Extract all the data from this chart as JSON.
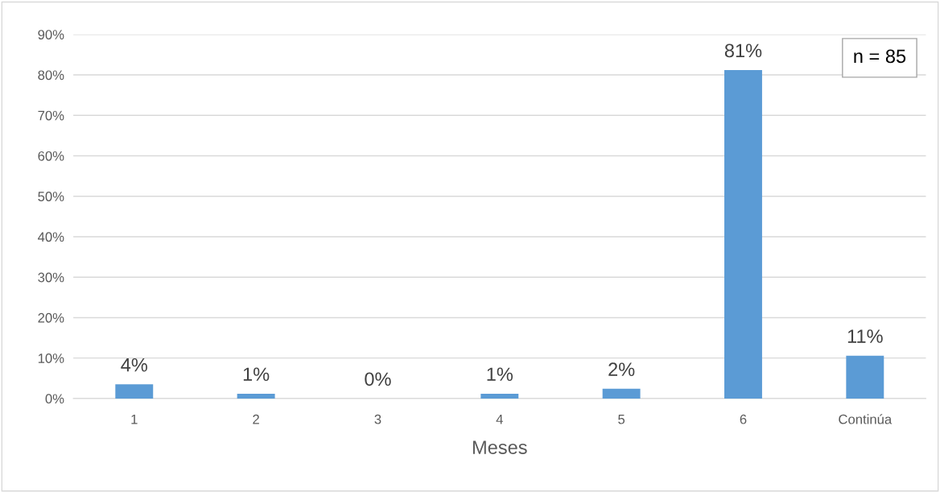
{
  "chart_data": {
    "type": "bar",
    "xlabel": "Meses",
    "categories": [
      "1",
      "2",
      "3",
      "4",
      "5",
      "6",
      "Continúa"
    ],
    "values": [
      3.5,
      1.2,
      0,
      1.2,
      2.4,
      81.2,
      10.6
    ],
    "value_labels": [
      "4%",
      "1%",
      "0%",
      "1%",
      "2%",
      "81%",
      "11%"
    ],
    "color": "#5b9bd5",
    "ylim": [
      0,
      90
    ],
    "yticks": [
      {
        "value": 0,
        "label": "0%"
      },
      {
        "value": 10,
        "label": "10%"
      },
      {
        "value": 20,
        "label": "20%"
      },
      {
        "value": 30,
        "label": "30%"
      },
      {
        "value": 40,
        "label": "40%"
      },
      {
        "value": 50,
        "label": "50%"
      },
      {
        "value": 60,
        "label": "60%"
      },
      {
        "value": 70,
        "label": "70%"
      },
      {
        "value": 80,
        "label": "80%"
      },
      {
        "value": 90,
        "label": "90%"
      }
    ],
    "grid": "y",
    "annotations": [
      "n = 85"
    ]
  }
}
